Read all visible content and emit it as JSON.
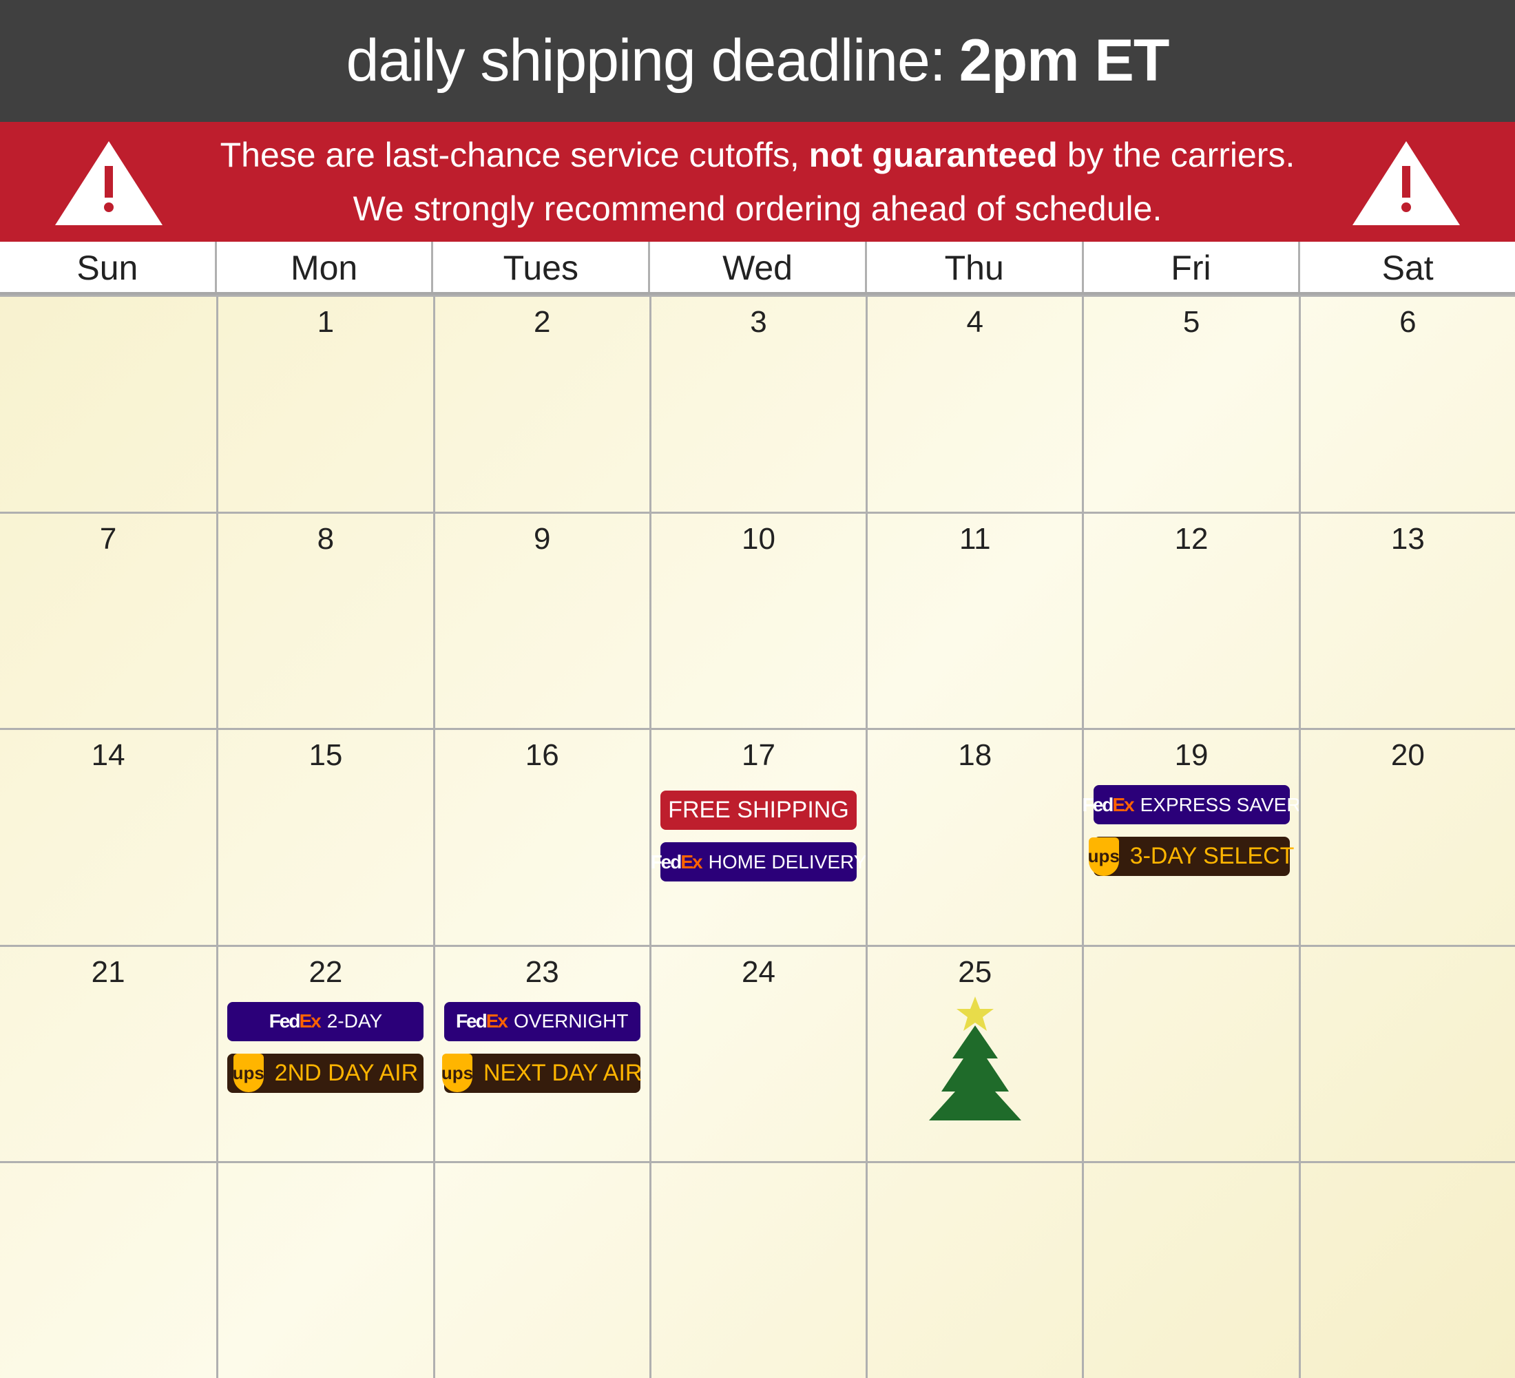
{
  "header": {
    "title_regular": "daily shipping deadline:",
    "title_bold": "2pm ET"
  },
  "warning": {
    "line1_a": "These are last-chance service cutoffs, ",
    "line1_bold": "not guaranteed",
    "line1_b": " by the carriers.",
    "line2": "We strongly recommend ordering ahead of schedule.",
    "icon": "warning-triangle-icon"
  },
  "days": [
    "Sun",
    "Mon",
    "Tues",
    "Wed",
    "Thu",
    "Fri",
    "Sat"
  ],
  "colors": {
    "header": "#404040",
    "warning": "#be1e2d",
    "fedex": "#2b0079",
    "fedex_ex": "#ff6200",
    "ups": "#351c0c",
    "ups_gold": "#ffb500",
    "tree": "#1f6b2a",
    "star": "#e8dc4a"
  },
  "cells": [
    {
      "date": ""
    },
    {
      "date": "1"
    },
    {
      "date": "2"
    },
    {
      "date": "3"
    },
    {
      "date": "4"
    },
    {
      "date": "5"
    },
    {
      "date": "6"
    },
    {
      "date": "7"
    },
    {
      "date": "8"
    },
    {
      "date": "9"
    },
    {
      "date": "10"
    },
    {
      "date": "11"
    },
    {
      "date": "12"
    },
    {
      "date": "13"
    },
    {
      "date": "14"
    },
    {
      "date": "15"
    },
    {
      "date": "16"
    },
    {
      "date": "17",
      "badges": [
        {
          "type": "free",
          "label": "FREE SHIPPING"
        },
        {
          "type": "fedex",
          "label": "HOME DELIVERY"
        }
      ]
    },
    {
      "date": "18"
    },
    {
      "date": "19",
      "badges": [
        {
          "type": "fedex",
          "label": "EXPRESS SAVER"
        },
        {
          "type": "ups",
          "label": "3-DAY SELECT"
        }
      ]
    },
    {
      "date": "20"
    },
    {
      "date": "21"
    },
    {
      "date": "22",
      "badges": [
        {
          "type": "fedex",
          "label": "2-DAY"
        },
        {
          "type": "ups",
          "label": "2ND DAY AIR"
        }
      ]
    },
    {
      "date": "23",
      "badges": [
        {
          "type": "fedex",
          "label": "OVERNIGHT"
        },
        {
          "type": "ups",
          "label": "NEXT DAY AIR"
        }
      ]
    },
    {
      "date": "24"
    },
    {
      "date": "25",
      "icon": "christmas-tree-icon"
    },
    {
      "date": ""
    },
    {
      "date": ""
    },
    {
      "date": ""
    },
    {
      "date": ""
    },
    {
      "date": ""
    },
    {
      "date": ""
    },
    {
      "date": ""
    },
    {
      "date": ""
    },
    {
      "date": ""
    }
  ],
  "logos": {
    "fedex_fed": "Fed",
    "fedex_ex": "Ex",
    "ups": "ups"
  }
}
